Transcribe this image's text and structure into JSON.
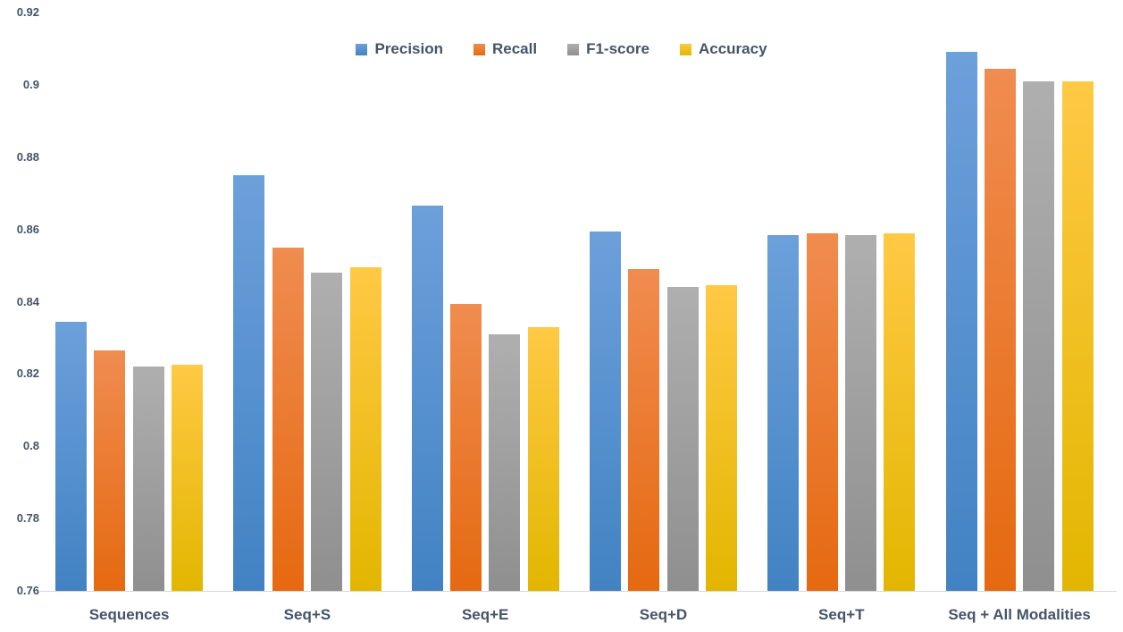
{
  "chart_data": {
    "type": "bar",
    "title": "",
    "xlabel": "",
    "ylabel": "",
    "categories": [
      "Sequences",
      "Seq+S",
      "Seq+E",
      "Seq+D",
      "Seq+T",
      "Seq + All Modalities"
    ],
    "series": [
      {
        "name": "Precision",
        "legend_color": "#5B9BD5",
        "gradient_top": "#6CA0DB",
        "gradient_bottom": "#4282C3",
        "values": [
          0.8345,
          0.875,
          0.8665,
          0.8595,
          0.8585,
          0.909
        ]
      },
      {
        "name": "Recall",
        "legend_color": "#ED7D31",
        "gradient_top": "#F08C50",
        "gradient_bottom": "#E56910",
        "values": [
          0.8265,
          0.855,
          0.8395,
          0.849,
          0.859,
          0.9045
        ]
      },
      {
        "name": "F1-score",
        "legend_color": "#A5A5A5",
        "gradient_top": "#AFAFAF",
        "gradient_bottom": "#8F8F8F",
        "values": [
          0.822,
          0.848,
          0.831,
          0.844,
          0.8585,
          0.901
        ]
      },
      {
        "name": "Accuracy",
        "legend_color": "#FFC000",
        "gradient_top": "#FFC944",
        "gradient_bottom": "#E2B600",
        "values": [
          0.8225,
          0.8495,
          0.833,
          0.8445,
          0.859,
          0.901
        ]
      }
    ],
    "ylim": [
      0.76,
      0.92
    ],
    "ytick_labels": [
      "0.76",
      "0.78",
      "0.8",
      "0.82",
      "0.84",
      "0.86",
      "0.88",
      "0.9",
      "0.92"
    ],
    "grid": false,
    "legend_position": "top-center",
    "axis_text_color": "#44546A",
    "baseline_color": "#D9D9D9"
  }
}
